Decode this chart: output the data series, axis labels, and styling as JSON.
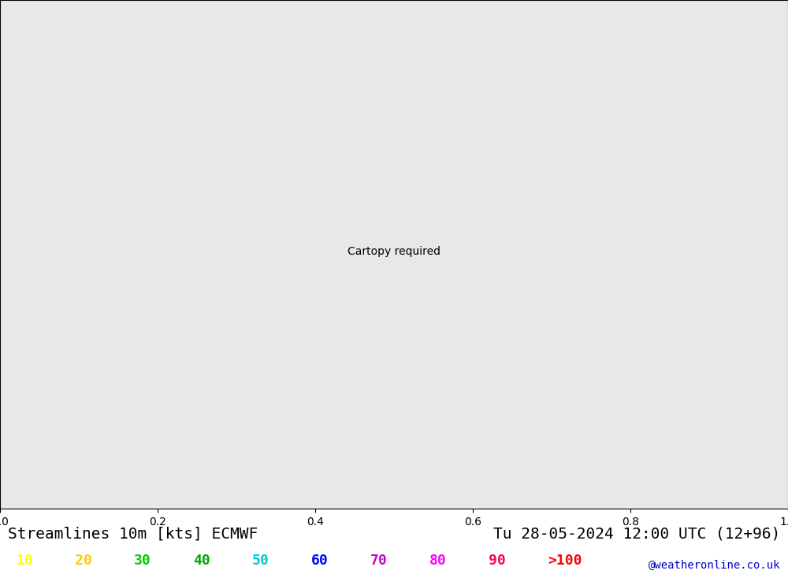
{
  "title_left": "Streamlines 10m [kts] ECMWF",
  "title_right": "Tu 28-05-2024 12:00 UTC (12+96)",
  "credit": "@weatheronline.co.uk",
  "legend_values": [
    "10",
    "20",
    "30",
    "40",
    "50",
    "60",
    "70",
    "80",
    "90",
    ">100"
  ],
  "legend_colors": [
    "#ffff00",
    "#ffcc00",
    "#00cc00",
    "#00aa00",
    "#00cccc",
    "#0000ff",
    "#cc00cc",
    "#ff00ff",
    "#ff0066",
    "#ff0000"
  ],
  "background_color": "#e8e8e8",
  "land_color": "#ccffcc",
  "coastline_color": "#aaaaaa",
  "fig_bg": "#ffffff",
  "map_extent": [
    90,
    185,
    -55,
    5
  ],
  "streamline_color_low": "#ffcc00",
  "streamline_color_mid": "#00cc00",
  "streamline_color_high": "#00ff00"
}
